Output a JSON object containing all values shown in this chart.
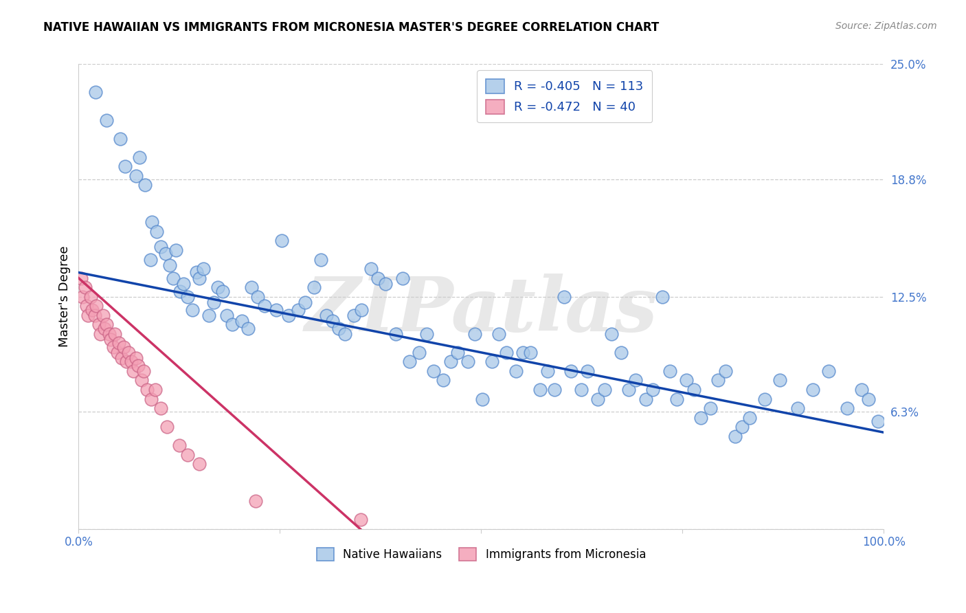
{
  "title": "NATIVE HAWAIIAN VS IMMIGRANTS FROM MICRONESIA MASTER'S DEGREE CORRELATION CHART",
  "source": "Source: ZipAtlas.com",
  "ylabel": "Master's Degree",
  "xlim": [
    0,
    100
  ],
  "ylim": [
    0,
    25
  ],
  "blue_R": -0.405,
  "blue_N": 113,
  "pink_R": -0.472,
  "pink_N": 40,
  "blue_label": "Native Hawaiians",
  "pink_label": "Immigrants from Micronesia",
  "background_color": "#ffffff",
  "blue_color": "#a8c8e8",
  "pink_color": "#f4a0b5",
  "blue_edge_color": "#5588cc",
  "pink_edge_color": "#cc6688",
  "blue_line_color": "#1144aa",
  "pink_line_color": "#cc3366",
  "watermark": "ZIPatlas",
  "blue_line_x0": 0,
  "blue_line_y0": 13.8,
  "blue_line_x1": 100,
  "blue_line_y1": 5.2,
  "pink_line_x0": 0,
  "pink_line_y0": 13.5,
  "pink_line_x1": 35,
  "pink_line_y1": 0.0,
  "ytick_values": [
    0,
    6.3,
    12.5,
    18.8,
    25.0
  ],
  "ytick_labels": [
    "",
    "6.3%",
    "12.5%",
    "18.8%",
    "25.0%"
  ],
  "xtick_values": [
    0,
    25,
    50,
    75,
    100
  ],
  "xtick_labels": [
    "0.0%",
    "",
    "",
    "",
    "100.0%"
  ],
  "blue_x": [
    2.1,
    3.5,
    5.2,
    5.8,
    7.1,
    7.6,
    8.2,
    8.9,
    9.1,
    9.7,
    10.2,
    10.8,
    11.3,
    11.7,
    12.1,
    12.6,
    13.0,
    13.5,
    14.1,
    14.6,
    15.0,
    15.5,
    16.2,
    16.8,
    17.3,
    17.9,
    18.4,
    19.1,
    20.3,
    21.0,
    21.5,
    22.2,
    23.1,
    24.5,
    25.2,
    26.1,
    27.3,
    28.1,
    29.2,
    30.1,
    30.8,
    31.5,
    32.3,
    33.1,
    34.2,
    35.1,
    36.3,
    37.2,
    38.1,
    39.4,
    40.2,
    41.1,
    42.3,
    43.2,
    44.1,
    45.3,
    46.2,
    47.1,
    48.3,
    49.2,
    50.1,
    51.3,
    52.2,
    53.1,
    54.3,
    55.2,
    56.1,
    57.3,
    58.2,
    59.1,
    60.3,
    61.1,
    62.4,
    63.2,
    64.5,
    65.3,
    66.2,
    67.4,
    68.3,
    69.2,
    70.4,
    71.3,
    72.5,
    73.4,
    74.3,
    75.5,
    76.4,
    77.3,
    78.5,
    79.4,
    80.3,
    81.5,
    82.4,
    83.3,
    85.2,
    87.1,
    89.3,
    91.2,
    93.1,
    95.4,
    97.2,
    98.1,
    99.3
  ],
  "blue_y": [
    23.5,
    22.0,
    21.0,
    19.5,
    19.0,
    20.0,
    18.5,
    14.5,
    16.5,
    16.0,
    15.2,
    14.8,
    14.2,
    13.5,
    15.0,
    12.8,
    13.2,
    12.5,
    11.8,
    13.8,
    13.5,
    14.0,
    11.5,
    12.2,
    13.0,
    12.8,
    11.5,
    11.0,
    11.2,
    10.8,
    13.0,
    12.5,
    12.0,
    11.8,
    15.5,
    11.5,
    11.8,
    12.2,
    13.0,
    14.5,
    11.5,
    11.2,
    10.8,
    10.5,
    11.5,
    11.8,
    14.0,
    13.5,
    13.2,
    10.5,
    13.5,
    9.0,
    9.5,
    10.5,
    8.5,
    8.0,
    9.0,
    9.5,
    9.0,
    10.5,
    7.0,
    9.0,
    10.5,
    9.5,
    8.5,
    9.5,
    9.5,
    7.5,
    8.5,
    7.5,
    12.5,
    8.5,
    7.5,
    8.5,
    7.0,
    7.5,
    10.5,
    9.5,
    7.5,
    8.0,
    7.0,
    7.5,
    12.5,
    8.5,
    7.0,
    8.0,
    7.5,
    6.0,
    6.5,
    8.0,
    8.5,
    5.0,
    5.5,
    6.0,
    7.0,
    8.0,
    6.5,
    7.5,
    8.5,
    6.5,
    7.5,
    7.0,
    5.8
  ],
  "pink_x": [
    0.3,
    0.5,
    0.8,
    1.0,
    1.2,
    1.5,
    1.7,
    2.0,
    2.2,
    2.5,
    2.7,
    3.0,
    3.2,
    3.5,
    3.8,
    4.0,
    4.3,
    4.5,
    4.8,
    5.0,
    5.3,
    5.6,
    5.9,
    6.2,
    6.5,
    6.8,
    7.1,
    7.4,
    7.8,
    8.1,
    8.5,
    9.0,
    9.5,
    10.2,
    11.0,
    12.5,
    13.5,
    15.0,
    22.0,
    35.0
  ],
  "pink_y": [
    13.5,
    12.5,
    13.0,
    12.0,
    11.5,
    12.5,
    11.8,
    11.5,
    12.0,
    11.0,
    10.5,
    11.5,
    10.8,
    11.0,
    10.5,
    10.2,
    9.8,
    10.5,
    9.5,
    10.0,
    9.2,
    9.8,
    9.0,
    9.5,
    9.0,
    8.5,
    9.2,
    8.8,
    8.0,
    8.5,
    7.5,
    7.0,
    7.5,
    6.5,
    5.5,
    4.5,
    4.0,
    3.5,
    1.5,
    0.5
  ]
}
